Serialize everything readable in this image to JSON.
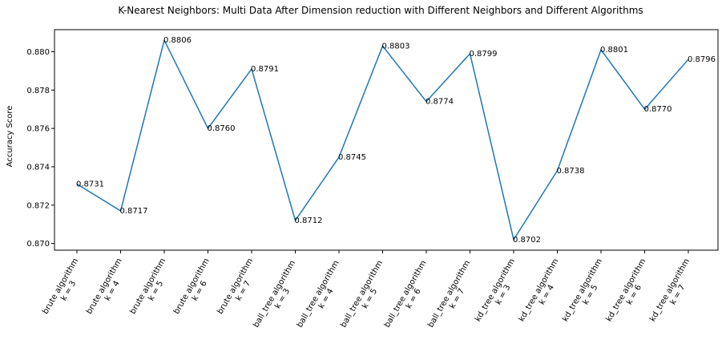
{
  "chart_data": {
    "type": "line",
    "title": "K-Nearest Neighbors: Multi Data After Dimension reduction with Different Neighbors and Different Algorithms",
    "xlabel": "",
    "ylabel": "Accuracy Score",
    "categories": [
      {
        "line1": "brute algorithm",
        "line2": "k = 3"
      },
      {
        "line1": "brute algorithm",
        "line2": "k = 4"
      },
      {
        "line1": "brute algorithm",
        "line2": "k = 5"
      },
      {
        "line1": "brute algorithm",
        "line2": "k = 6"
      },
      {
        "line1": "brute algorithm",
        "line2": "k = 7"
      },
      {
        "line1": "ball_tree algorithm",
        "line2": "k = 3"
      },
      {
        "line1": "ball_tree algorithm",
        "line2": "k = 4"
      },
      {
        "line1": "ball_tree algorithm",
        "line2": "k = 5"
      },
      {
        "line1": "ball_tree algorithm",
        "line2": "k = 6"
      },
      {
        "line1": "ball_tree algorithm",
        "line2": "k = 7"
      },
      {
        "line1": "kd_tree algorithm",
        "line2": "k = 3"
      },
      {
        "line1": "kd_tree algorithm",
        "line2": "k = 4"
      },
      {
        "line1": "kd_tree algorithm",
        "line2": "k = 5"
      },
      {
        "line1": "kd_tree algorithm",
        "line2": "k = 6"
      },
      {
        "line1": "kd_tree algorithm",
        "line2": "k = 7"
      }
    ],
    "values": [
      0.8731,
      0.8717,
      0.8806,
      0.876,
      0.8791,
      0.8712,
      0.8745,
      0.8803,
      0.8774,
      0.8799,
      0.8702,
      0.8738,
      0.8801,
      0.877,
      0.8796
    ],
    "data_labels": [
      "0.8731",
      "0.8717",
      "0.8806",
      "0.8760",
      "0.8791",
      "0.8712",
      "0.8745",
      "0.8803",
      "0.8774",
      "0.8799",
      "0.8702",
      "0.8738",
      "0.8801",
      "0.8770",
      "0.8796"
    ],
    "ylim": [
      0.86965,
      0.88115
    ],
    "yticks": [
      0.87,
      0.872,
      0.874,
      0.876,
      0.878,
      0.88
    ],
    "ytick_labels": [
      "0.870",
      "0.872",
      "0.874",
      "0.876",
      "0.878",
      "0.880"
    ],
    "line_color": "#1f77b4",
    "grid": false,
    "legend": "none"
  }
}
